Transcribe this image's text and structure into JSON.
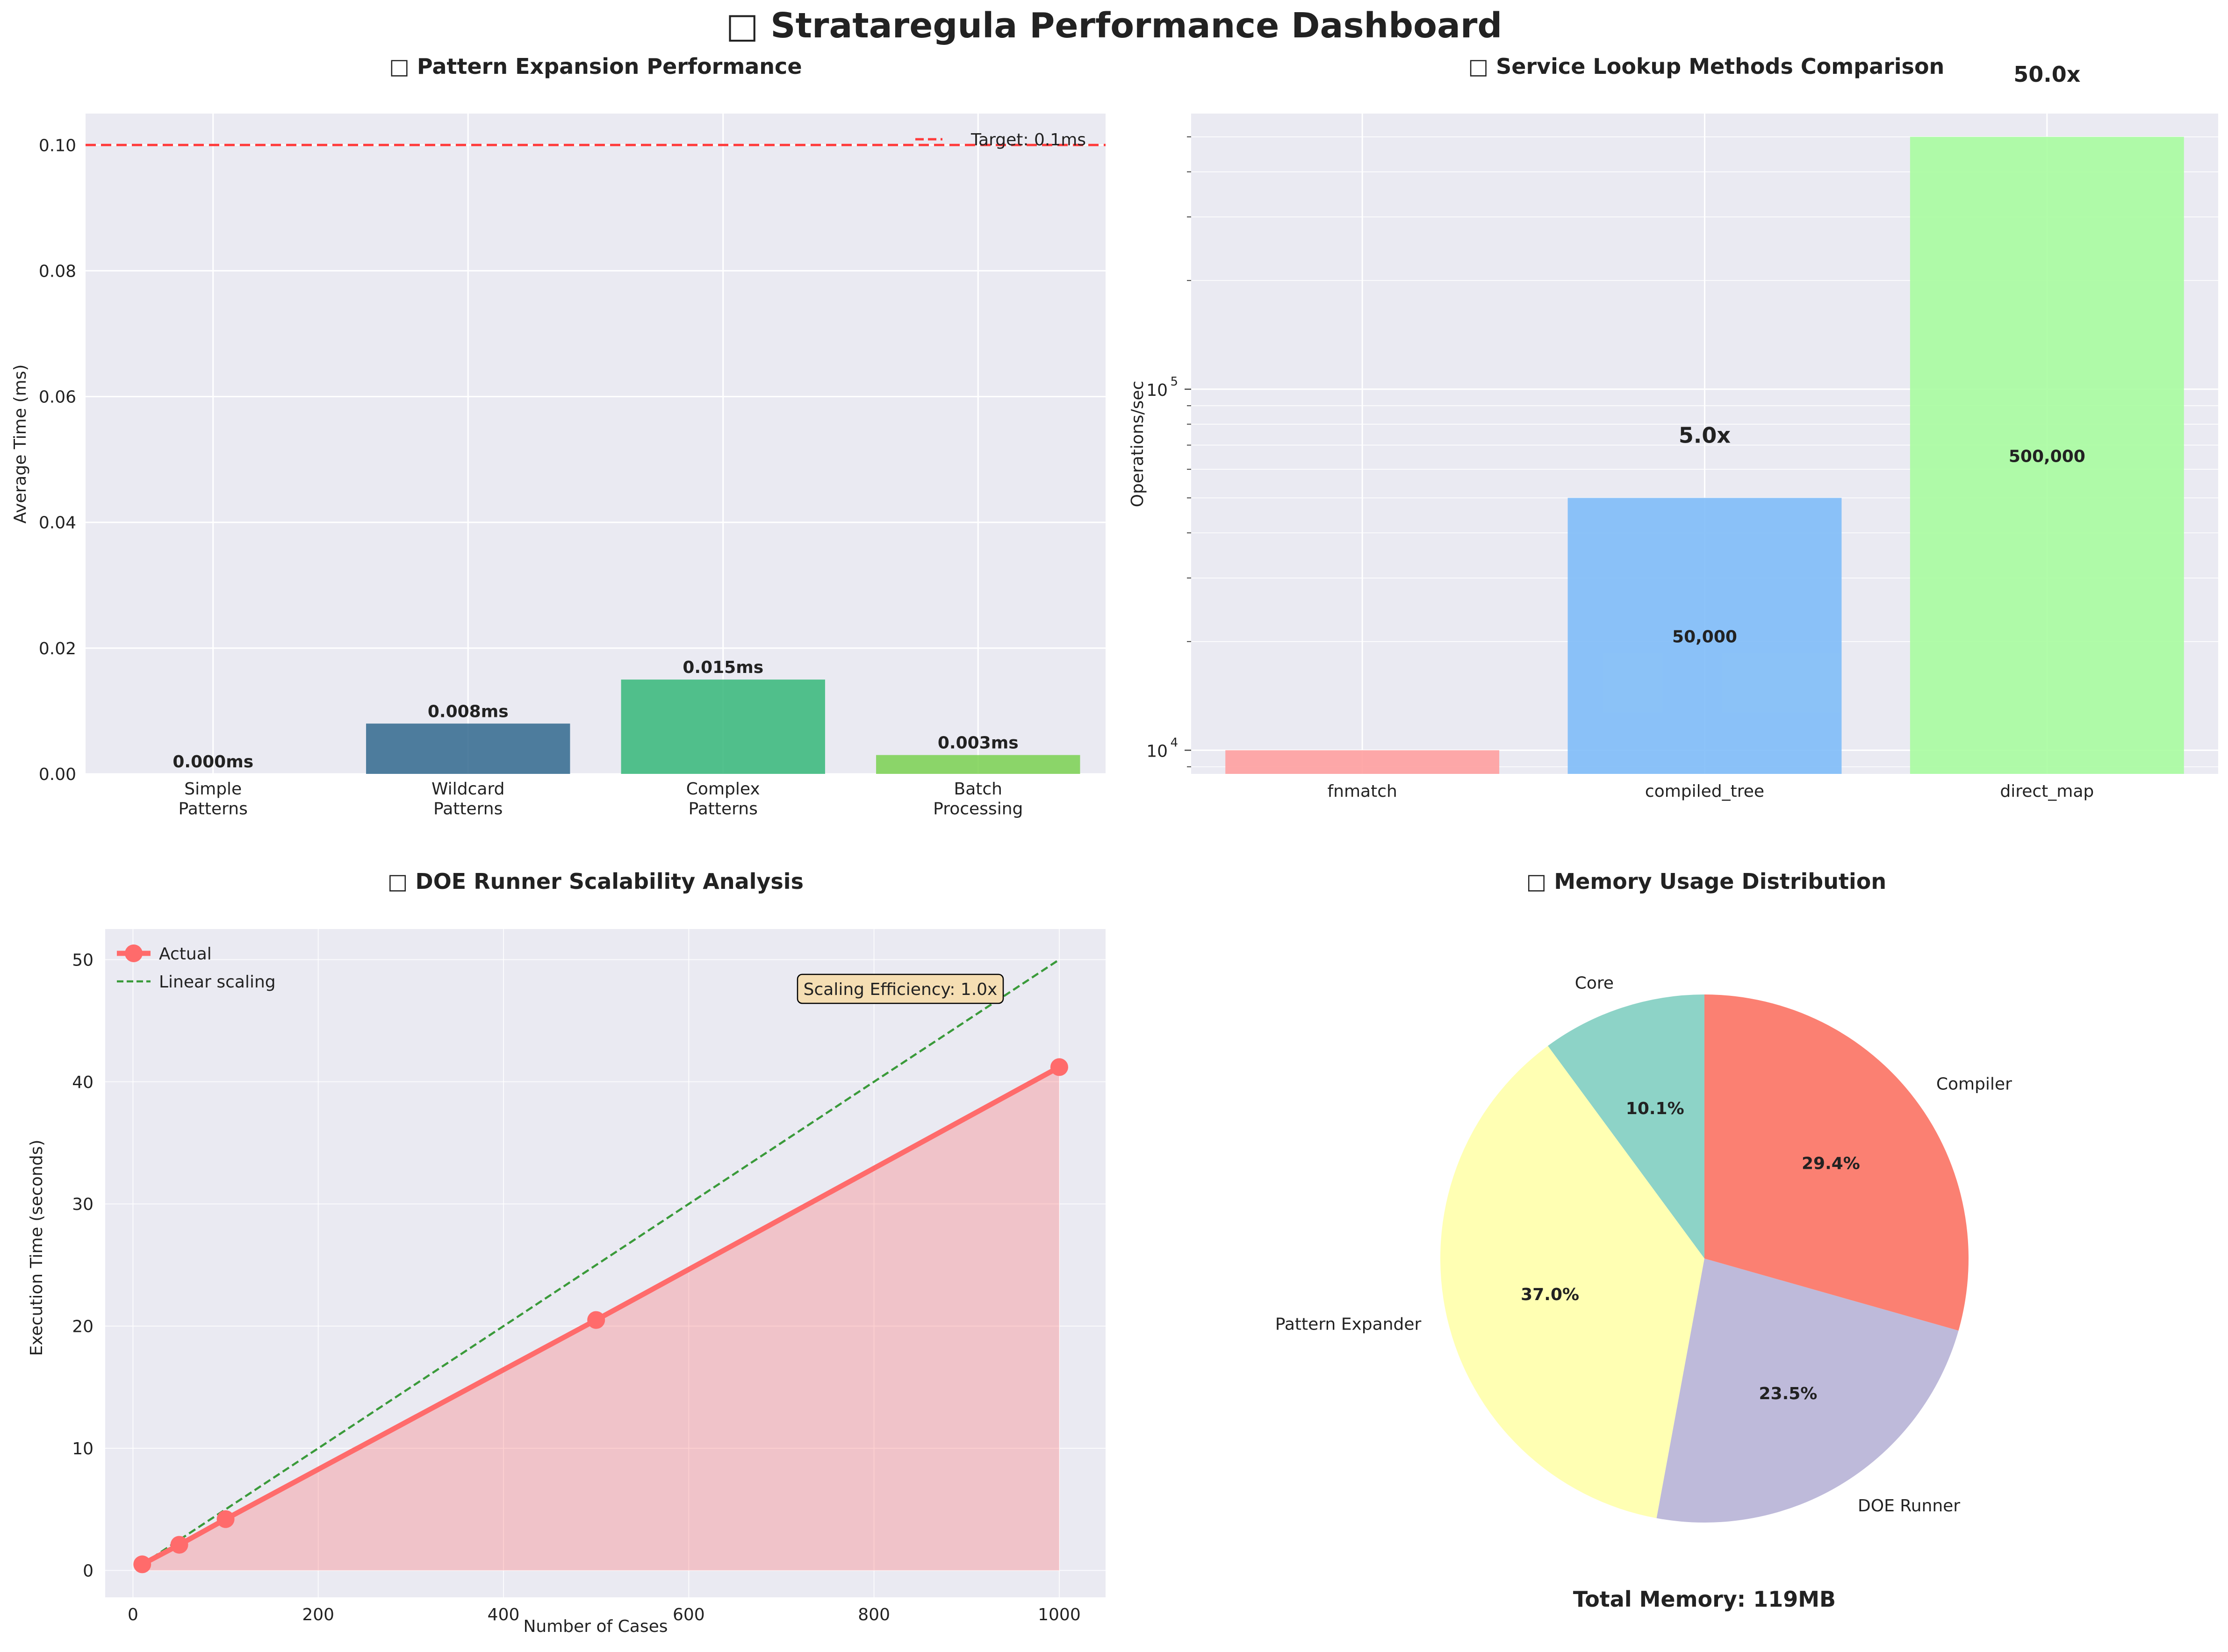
{
  "title": "□ Strataregula Performance Dashboard",
  "chart_data": [
    {
      "type": "bar",
      "title": "□ Pattern Expansion Performance",
      "xlabel": "",
      "ylabel": "Average Time (ms)",
      "categories": [
        "Simple\nPatterns",
        "Wildcard\nPatterns",
        "Complex\nPatterns",
        "Batch\nProcessing"
      ],
      "values": [
        0.0,
        0.008,
        0.015,
        0.003
      ],
      "value_labels": [
        "0.000ms",
        "0.008ms",
        "0.015ms",
        "0.003ms"
      ],
      "colors": [
        "#440154",
        "#31688e",
        "#35b779",
        "#7ad151"
      ],
      "ylim": [
        0,
        0.105
      ],
      "yticks": [
        0.0,
        0.02,
        0.04,
        0.06,
        0.08,
        0.1
      ],
      "ytick_labels": [
        "0.00",
        "0.02",
        "0.04",
        "0.06",
        "0.08",
        "0.10"
      ],
      "reference_line": {
        "value": 0.1,
        "label": "Target: 0.1ms",
        "color": "#ff3b3b"
      },
      "legend": "top-right",
      "grid": true
    },
    {
      "type": "bar",
      "title": "□ Service Lookup Methods Comparison",
      "xlabel": "",
      "ylabel": "Operations/sec",
      "yscale": "log",
      "categories": [
        "fnmatch",
        "compiled_tree",
        "direct_map"
      ],
      "values": [
        10000,
        50000,
        500000
      ],
      "value_labels": [
        "",
        "50,000",
        "500,000"
      ],
      "speedup_labels": [
        "",
        "5.0x",
        "50.0x"
      ],
      "colors": [
        "#ffa0a0",
        "#80bdf8",
        "#a8fca0"
      ],
      "ylim": [
        8600,
        580000
      ],
      "yticks_major": [
        10000,
        100000
      ],
      "ytick_labels": [
        "10",
        "10"
      ],
      "ytick_exponents": [
        "4",
        "5"
      ],
      "grid": true
    },
    {
      "type": "line",
      "title": "□ DOE Runner Scalability Analysis",
      "xlabel": "Number of Cases",
      "ylabel": "Execution Time (seconds)",
      "x": [
        10,
        50,
        100,
        500,
        1000
      ],
      "series": [
        {
          "name": "Actual",
          "values": [
            0.5,
            2.1,
            4.2,
            20.5,
            41.2
          ],
          "color": "#ff6b6b"
        },
        {
          "name": "Linear scaling",
          "values": [
            0.5,
            2.5,
            5.0,
            25.0,
            50.0
          ],
          "color": "#3a9a3a",
          "dashed": true
        }
      ],
      "xlim": [
        -30,
        1050
      ],
      "ylim": [
        -2.2,
        52.5
      ],
      "xticks": [
        0,
        200,
        400,
        600,
        800,
        1000
      ],
      "yticks": [
        0,
        10,
        20,
        30,
        40,
        50
      ],
      "annotation": "Scaling Efficiency: 1.0x",
      "legend": "top-left",
      "grid": true
    },
    {
      "type": "pie",
      "title": "□ Memory Usage Distribution",
      "labels": [
        "Core",
        "Pattern Expander",
        "DOE Runner",
        "Compiler"
      ],
      "values": [
        10.1,
        37.0,
        23.5,
        29.4
      ],
      "pct_labels": [
        "10.1%",
        "37.0%",
        "23.5%",
        "29.4%"
      ],
      "colors": [
        "#8dd3c7",
        "#ffffb3",
        "#bebada",
        "#fb8072"
      ],
      "start_angle": 90,
      "footer": "Total Memory: 119MB"
    }
  ]
}
